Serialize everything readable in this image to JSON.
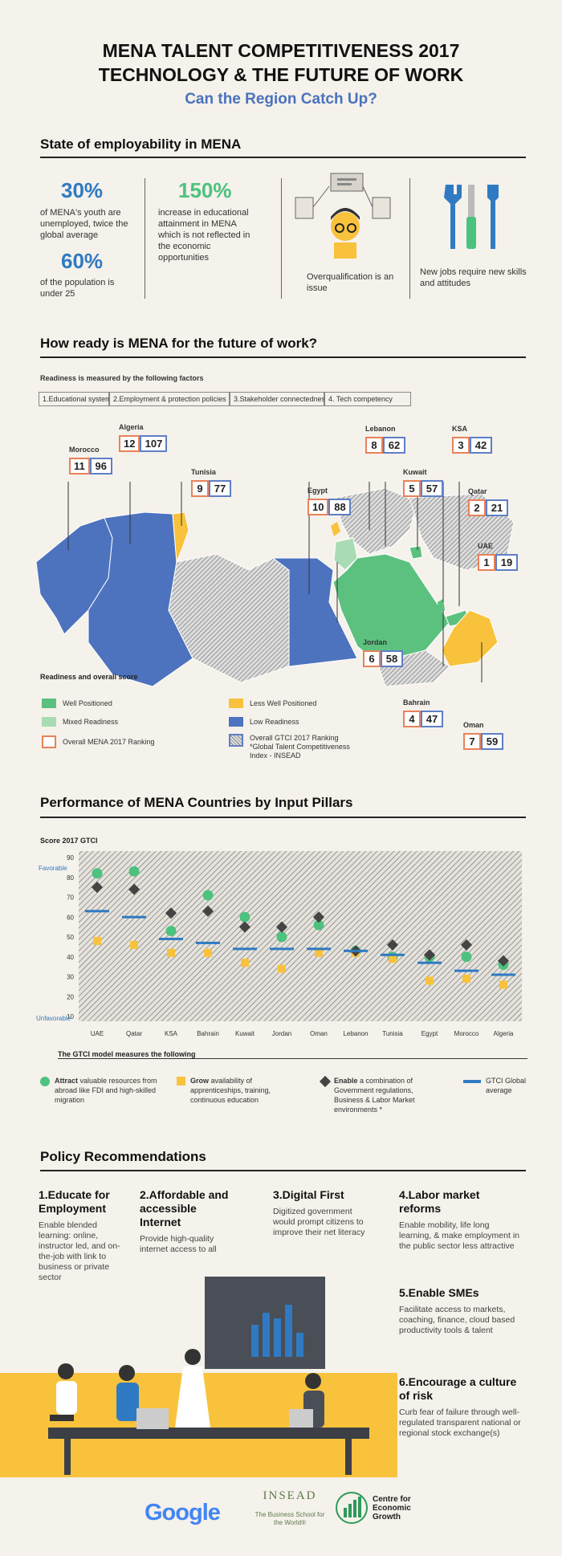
{
  "header": {
    "title_line1": "MENA TALENT COMPETITIVENESS 2017",
    "title_line2": "TECHNOLOGY & THE FUTURE OF WORK",
    "subtitle": "Can the Region Catch Up?"
  },
  "employability": {
    "heading": "State of employability in MENA",
    "stat1_value": "30%",
    "stat1_text": "of MENA's youth are unemployed, twice the global average",
    "stat2_value": "60%",
    "stat2_text": "of the population is under 25",
    "stat3_value": "150%",
    "stat3_text": "increase in educational attainment in MENA which is not reflected in the economic opportunities",
    "stat4_text": "Overqualification is an issue",
    "stat5_text": "New jobs require new skills and attitudes",
    "colors": {
      "blue": "#2f7ac2",
      "green": "#4cc27e"
    }
  },
  "readiness": {
    "heading": "How ready is MENA for the future of work?",
    "factors_label": "Readiness is measured by the following factors",
    "factors": [
      "1.Educational system",
      "2.Employment & protection policies",
      "3.Stakeholder connectedness",
      "4. Tech competency"
    ],
    "countries": [
      {
        "name": "Morocco",
        "mena": "11",
        "gtci": "96"
      },
      {
        "name": "Algeria",
        "mena": "12",
        "gtci": "107"
      },
      {
        "name": "Tunisia",
        "mena": "9",
        "gtci": "77"
      },
      {
        "name": "Egypt",
        "mena": "10",
        "gtci": "88"
      },
      {
        "name": "Lebanon",
        "mena": "8",
        "gtci": "62"
      },
      {
        "name": "KSA",
        "mena": "3",
        "gtci": "42"
      },
      {
        "name": "Kuwait",
        "mena": "5",
        "gtci": "57"
      },
      {
        "name": "Qatar",
        "mena": "2",
        "gtci": "21"
      },
      {
        "name": "UAE",
        "mena": "1",
        "gtci": "19"
      },
      {
        "name": "Jordan",
        "mena": "6",
        "gtci": "58"
      },
      {
        "name": "Bahrain",
        "mena": "4",
        "gtci": "47"
      },
      {
        "name": "Oman",
        "mena": "7",
        "gtci": "59"
      }
    ],
    "legend_title": "Readiness and overall score",
    "legend": {
      "well": "Well Positioned",
      "mixed": "Mixed Readiness",
      "less": "Less Well Positioned",
      "low": "Low Readiness",
      "mena_rank": "Overall MENA 2017 Ranking",
      "gtci_rank": "Overall GTCI 2017 Ranking",
      "gtci_note": "*Global Talent Competitiveness Index - INSEAD"
    },
    "colors": {
      "well": "#5cc17f",
      "mixed": "#a9dcb4",
      "less": "#f9c23c",
      "low": "#4d73bf",
      "mena_border": "#e8825a",
      "gtci_border": "#5e7fc5"
    }
  },
  "pillars": {
    "heading": "Performance of MENA Countries by Input Pillars",
    "chart_title": "Score 2017 GTCI",
    "favorable": "Favorable",
    "unfavorable": "Unfavorable",
    "gtci_model": "The GTCI model measures the following",
    "legend_attract_bold": "Attract",
    "legend_attract": " valuable resources from abroad like FDI and high-skilled migration",
    "legend_grow_bold": "Grow",
    "legend_grow": " availability of apprenticeships, training, continuous education",
    "legend_enable_bold": "Enable",
    "legend_enable": " a combination of Government regulations, Business & Labor Market environments *",
    "legend_gtci": "GTCI Global average"
  },
  "chart_data": {
    "type": "scatter",
    "title": "Score 2017 GTCI",
    "xlabel": "",
    "ylabel": "Score 2017 GTCI",
    "ylim": [
      10,
      90
    ],
    "yticks": [
      10,
      20,
      30,
      40,
      50,
      60,
      70,
      80,
      90
    ],
    "categories": [
      "UAE",
      "Qatar",
      "KSA",
      "Bahrain",
      "Kuwait",
      "Jordan",
      "Oman",
      "Lebanon",
      "Tunisia",
      "Egypt",
      "Morocco",
      "Algeria"
    ],
    "series": [
      {
        "name": "Attract",
        "marker": "circle",
        "color": "#4cc27e",
        "values": [
          82,
          83,
          53,
          71,
          60,
          50,
          56,
          43,
          40,
          40,
          40,
          36
        ]
      },
      {
        "name": "Grow",
        "marker": "square",
        "color": "#f9c23c",
        "values": [
          48,
          46,
          42,
          42,
          37,
          34,
          42,
          42,
          39,
          28,
          29,
          26
        ]
      },
      {
        "name": "Enable",
        "marker": "diamond",
        "color": "#444444",
        "values": [
          75,
          74,
          62,
          63,
          55,
          55,
          60,
          43,
          46,
          41,
          46,
          38
        ]
      },
      {
        "name": "GTCI",
        "marker": "line",
        "color": "#2f7ac2",
        "values": [
          63,
          60,
          49,
          47,
          44,
          44,
          44,
          43,
          41,
          37,
          33,
          31
        ]
      }
    ]
  },
  "policy": {
    "heading": "Policy Recommendations",
    "items": [
      {
        "title": "1.Educate for Employment",
        "text": "Enable blended learning: online, instructor led, and on-the-job with link to business or private sector"
      },
      {
        "title": "2.Affordable and accessible Internet",
        "text": "Provide high-quality internet access to all"
      },
      {
        "title": "3.Digital First",
        "text": "Digitized government would prompt citizens to improve their net literacy"
      },
      {
        "title": "4.Labor market reforms",
        "text": "Enable mobility, life long learning, & make employment in the public sector less attractive"
      },
      {
        "title": "5.Enable SMEs",
        "text": "Facilitate access to markets, coaching, finance, cloud based productivity tools & talent"
      },
      {
        "title": "6.Encourage a culture of risk",
        "text": "Curb fear of failure through well-regulated transparent national or regional stock exchange(s)"
      }
    ]
  },
  "footer": {
    "google": "Google",
    "insead": "INSEAD",
    "insead_tag": "The Business School for the World®",
    "cec_line1": "Centre for",
    "cec_line2": "Economic",
    "cec_line3": "Growth"
  }
}
